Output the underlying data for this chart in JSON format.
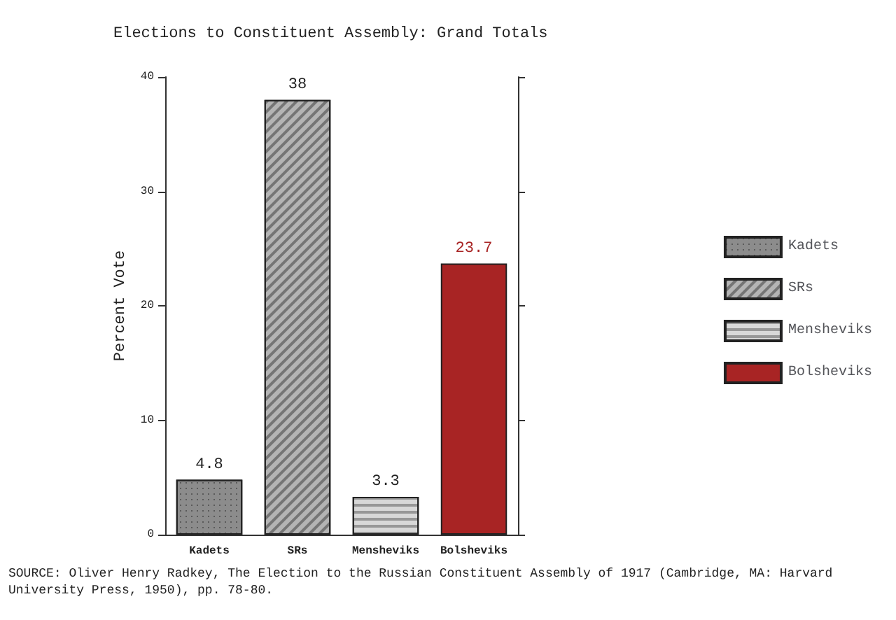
{
  "chart_data": {
    "type": "bar",
    "title": "Elections to Constituent Assembly: Grand Totals",
    "ylabel": "Percent Vote",
    "categories": [
      "Kadets",
      "SRs",
      "Mensheviks",
      "Bolsheviks"
    ],
    "stacked": true,
    "series": [
      {
        "name": "Kadets",
        "color": "#8c8c8c",
        "values": [
          4.8,
          null,
          null,
          null
        ]
      },
      {
        "name": "SRs",
        "color": "#b4b4b4",
        "values": [
          null,
          38,
          null,
          null
        ]
      },
      {
        "name": "Mensheviks",
        "color": "#d8d8d8",
        "values": [
          null,
          null,
          3.3,
          null
        ]
      },
      {
        "name": "Bolsheviks",
        "color": "#a82424",
        "values": [
          null,
          null,
          null,
          23.7
        ]
      }
    ],
    "ylim": [
      0,
      40
    ],
    "yticks": [
      0,
      10,
      20,
      30,
      40
    ],
    "data_labels": true,
    "legend": "right",
    "grid": false,
    "annotations": [
      "SOURCE: Oliver Henry Radkey, The Election to the Russian Constituent Assembly of 1917 (Cambridge, MA: Harvard University Press, 1950), pp. 78-80."
    ]
  }
}
